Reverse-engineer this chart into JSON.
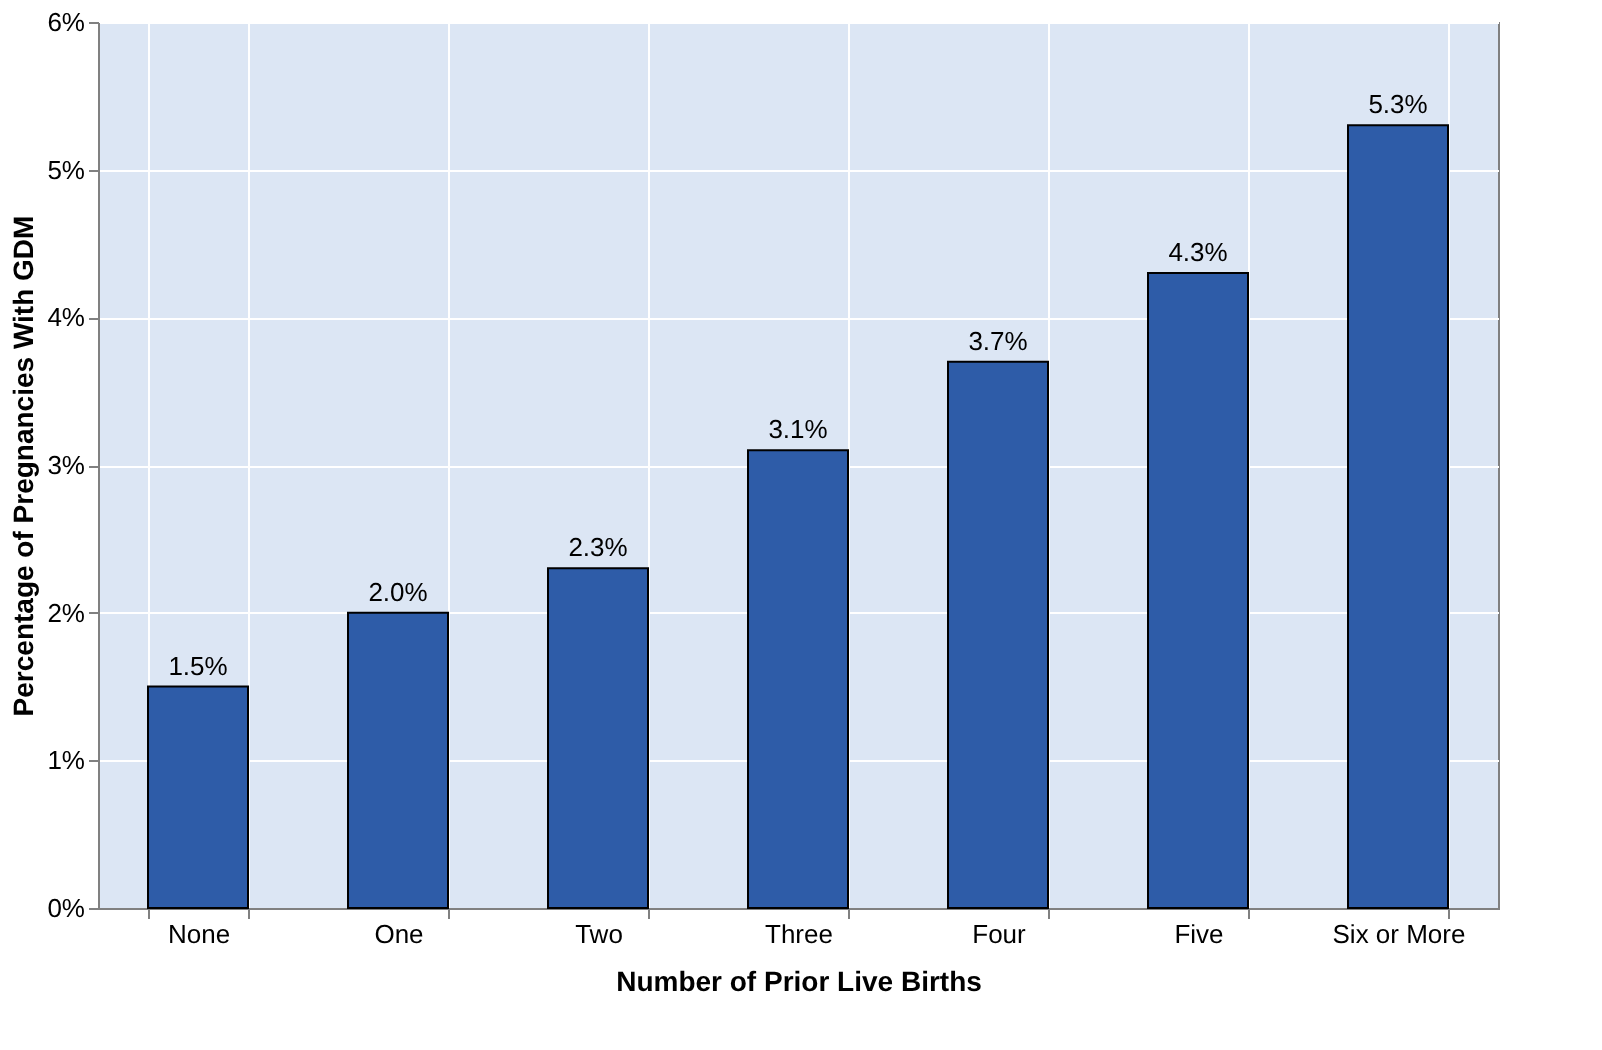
{
  "chart_data": {
    "type": "bar",
    "xlabel": "Number of Prior Live Births",
    "ylabel": "Percentage of Pregnancies With GDM",
    "categories": [
      "None",
      "One",
      "Two",
      "Three",
      "Four",
      "Five",
      "Six or More"
    ],
    "values": [
      1.5,
      2.0,
      2.3,
      3.1,
      3.7,
      4.3,
      5.3
    ],
    "value_labels": [
      "1.5%",
      "2.0%",
      "2.3%",
      "3.1%",
      "3.7%",
      "4.3%",
      "5.3%"
    ],
    "color": "#2e5ca8",
    "ylim": [
      0,
      6
    ],
    "yticks": [
      {
        "value": 0,
        "label": "0%"
      },
      {
        "value": 1,
        "label": "1%"
      },
      {
        "value": 2,
        "label": "2%"
      },
      {
        "value": 3,
        "label": "3%"
      },
      {
        "value": 4,
        "label": "4%"
      },
      {
        "value": 5,
        "label": "5%"
      },
      {
        "value": 6,
        "label": "6%"
      }
    ],
    "grid": true
  }
}
